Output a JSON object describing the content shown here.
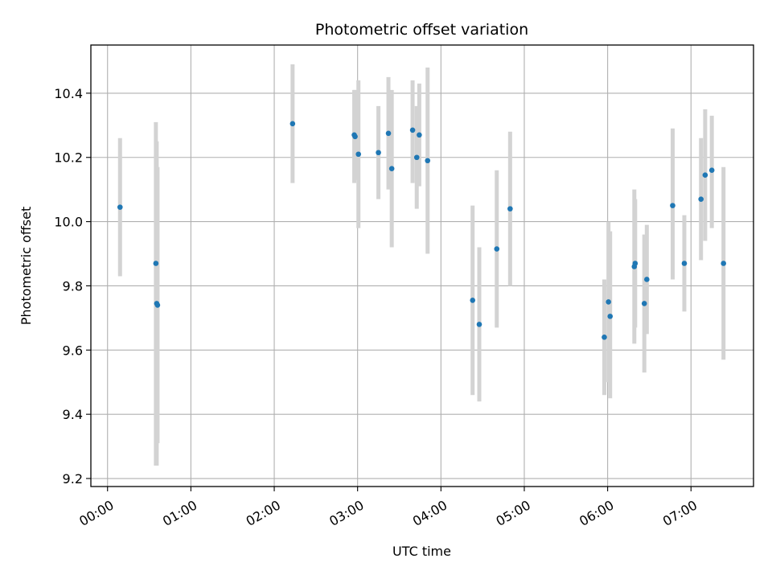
{
  "chart_data": {
    "type": "scatter",
    "title": "Photometric offset variation",
    "xlabel": "UTC time",
    "ylabel": "Photometric offset",
    "x_unit": "hours",
    "xlim": [
      -0.2,
      7.75
    ],
    "ylim": [
      9.175,
      10.55
    ],
    "grid": true,
    "x_ticks": [
      0,
      1,
      2,
      3,
      4,
      5,
      6,
      7
    ],
    "x_tick_labels": [
      "00:00",
      "01:00",
      "02:00",
      "03:00",
      "04:00",
      "05:00",
      "06:00",
      "07:00"
    ],
    "y_ticks": [
      9.2,
      9.4,
      9.6,
      9.8,
      10.0,
      10.2,
      10.4
    ],
    "y_tick_labels": [
      "9.2",
      "9.4",
      "9.6",
      "9.8",
      "10.0",
      "10.2",
      "10.4"
    ],
    "colors": {
      "point": "#1f77b4",
      "errorbar": "#d3d3d3",
      "grid": "#b0b0b0"
    },
    "points": [
      {
        "x": 0.15,
        "y": 10.045,
        "lo": 9.83,
        "hi": 10.26
      },
      {
        "x": 0.58,
        "y": 9.87,
        "lo": 9.24,
        "hi": 10.31
      },
      {
        "x": 0.59,
        "y": 9.745,
        "lo": 9.24,
        "hi": 10.25
      },
      {
        "x": 0.6,
        "y": 9.74,
        "lo": 9.31,
        "hi": 10.17
      },
      {
        "x": 2.22,
        "y": 10.305,
        "lo": 10.12,
        "hi": 10.49
      },
      {
        "x": 2.96,
        "y": 10.27,
        "lo": 10.12,
        "hi": 10.41
      },
      {
        "x": 2.97,
        "y": 10.265,
        "lo": 10.13,
        "hi": 10.41
      },
      {
        "x": 3.01,
        "y": 10.21,
        "lo": 9.98,
        "hi": 10.44
      },
      {
        "x": 3.25,
        "y": 10.215,
        "lo": 10.07,
        "hi": 10.36
      },
      {
        "x": 3.37,
        "y": 10.275,
        "lo": 10.1,
        "hi": 10.45
      },
      {
        "x": 3.41,
        "y": 10.165,
        "lo": 9.92,
        "hi": 10.41
      },
      {
        "x": 3.66,
        "y": 10.285,
        "lo": 10.12,
        "hi": 10.44
      },
      {
        "x": 3.71,
        "y": 10.2,
        "lo": 10.04,
        "hi": 10.36
      },
      {
        "x": 3.74,
        "y": 10.27,
        "lo": 10.11,
        "hi": 10.43
      },
      {
        "x": 3.84,
        "y": 10.19,
        "lo": 9.9,
        "hi": 10.48
      },
      {
        "x": 4.38,
        "y": 9.755,
        "lo": 9.46,
        "hi": 10.05
      },
      {
        "x": 4.46,
        "y": 9.68,
        "lo": 9.44,
        "hi": 9.92
      },
      {
        "x": 4.67,
        "y": 9.915,
        "lo": 9.67,
        "hi": 10.16
      },
      {
        "x": 4.83,
        "y": 10.04,
        "lo": 9.8,
        "hi": 10.28
      },
      {
        "x": 5.96,
        "y": 9.64,
        "lo": 9.46,
        "hi": 9.82
      },
      {
        "x": 6.01,
        "y": 9.75,
        "lo": 9.5,
        "hi": 10.0
      },
      {
        "x": 6.03,
        "y": 9.705,
        "lo": 9.45,
        "hi": 9.97
      },
      {
        "x": 6.32,
        "y": 9.86,
        "lo": 9.62,
        "hi": 10.1
      },
      {
        "x": 6.33,
        "y": 9.87,
        "lo": 9.67,
        "hi": 10.07
      },
      {
        "x": 6.44,
        "y": 9.745,
        "lo": 9.53,
        "hi": 9.96
      },
      {
        "x": 6.47,
        "y": 9.82,
        "lo": 9.65,
        "hi": 9.99
      },
      {
        "x": 6.78,
        "y": 10.05,
        "lo": 9.82,
        "hi": 10.29
      },
      {
        "x": 6.92,
        "y": 9.87,
        "lo": 9.72,
        "hi": 10.02
      },
      {
        "x": 7.12,
        "y": 10.07,
        "lo": 9.88,
        "hi": 10.26
      },
      {
        "x": 7.17,
        "y": 10.145,
        "lo": 9.94,
        "hi": 10.35
      },
      {
        "x": 7.25,
        "y": 10.16,
        "lo": 9.98,
        "hi": 10.33
      },
      {
        "x": 7.39,
        "y": 9.87,
        "lo": 9.57,
        "hi": 10.17
      }
    ]
  }
}
